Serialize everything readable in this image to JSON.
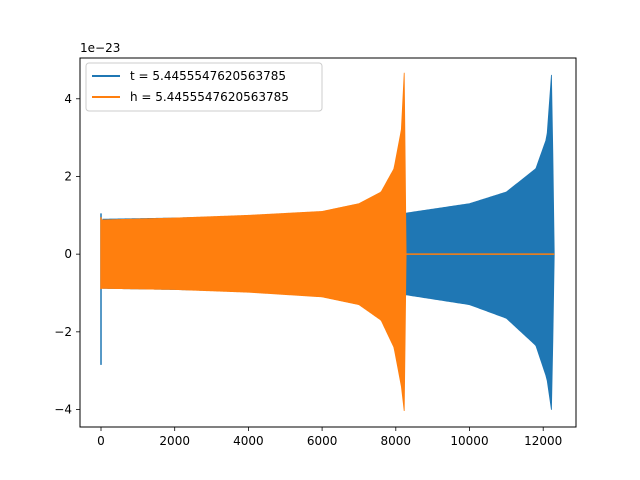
{
  "chart_data": {
    "type": "line",
    "title": "",
    "xlabel": "",
    "ylabel": "",
    "y_offset_label": "1e−23",
    "xlim": [
      -570,
      12890
    ],
    "ylim": [
      -4.45,
      5.05
    ],
    "xticks": [
      0,
      2000,
      4000,
      6000,
      8000,
      10000,
      12000
    ],
    "xtick_labels": [
      "0",
      "2000",
      "4000",
      "6000",
      "8000",
      "10000",
      "12000"
    ],
    "yticks": [
      -4,
      -2,
      0,
      2,
      4
    ],
    "ytick_labels": [
      "−4",
      "−2",
      "0",
      "2",
      "4"
    ],
    "grid": false,
    "legend_position": "upper left",
    "series": [
      {
        "name": "t = 5.4455547620563785",
        "color": "#1f77b4",
        "kind": "oscillating chirp",
        "x_start": 0,
        "x_end": 12300,
        "initial_spike": {
          "x": 0,
          "max": 1.05,
          "min": -2.85
        },
        "envelope": [
          {
            "x": 50,
            "upper": 0.9,
            "lower": -0.88
          },
          {
            "x": 2000,
            "upper": 0.93,
            "lower": -0.91
          },
          {
            "x": 4000,
            "upper": 0.98,
            "lower": -0.96
          },
          {
            "x": 6000,
            "upper": 1.05,
            "lower": -1.03
          },
          {
            "x": 8000,
            "upper": 1.0,
            "lower": -1.0
          },
          {
            "x": 8300,
            "upper": 1.06,
            "lower": -1.05
          },
          {
            "x": 10000,
            "upper": 1.3,
            "lower": -1.3
          },
          {
            "x": 11000,
            "upper": 1.6,
            "lower": -1.65
          },
          {
            "x": 11800,
            "upper": 2.2,
            "lower": -2.35
          },
          {
            "x": 12100,
            "upper": 3.0,
            "lower": -3.2
          },
          {
            "x": 12230,
            "upper": 4.7,
            "lower": -4.05
          },
          {
            "x": 12300,
            "upper": 0.0,
            "lower": 0.0
          }
        ]
      },
      {
        "name": "h = 5.4455547620563785",
        "color": "#ff7f0e",
        "kind": "oscillating chirp",
        "x_start": 0,
        "x_end": 8280,
        "initial_spike": {
          "x": 0,
          "max": 0.95,
          "min": -0.9
        },
        "envelope": [
          {
            "x": 20,
            "upper": 0.88,
            "lower": -0.88
          },
          {
            "x": 2000,
            "upper": 0.93,
            "lower": -0.91
          },
          {
            "x": 4000,
            "upper": 1.0,
            "lower": -0.98
          },
          {
            "x": 6000,
            "upper": 1.1,
            "lower": -1.1
          },
          {
            "x": 7000,
            "upper": 1.3,
            "lower": -1.3
          },
          {
            "x": 7600,
            "upper": 1.6,
            "lower": -1.7
          },
          {
            "x": 7950,
            "upper": 2.2,
            "lower": -2.4
          },
          {
            "x": 8150,
            "upper": 3.2,
            "lower": -3.4
          },
          {
            "x": 8230,
            "upper": 4.7,
            "lower": -4.05
          },
          {
            "x": 8280,
            "upper": 0.0,
            "lower": 0.0
          }
        ],
        "flat_tail": {
          "x_start": 8280,
          "x_end": 12300,
          "y": 0
        }
      }
    ]
  }
}
